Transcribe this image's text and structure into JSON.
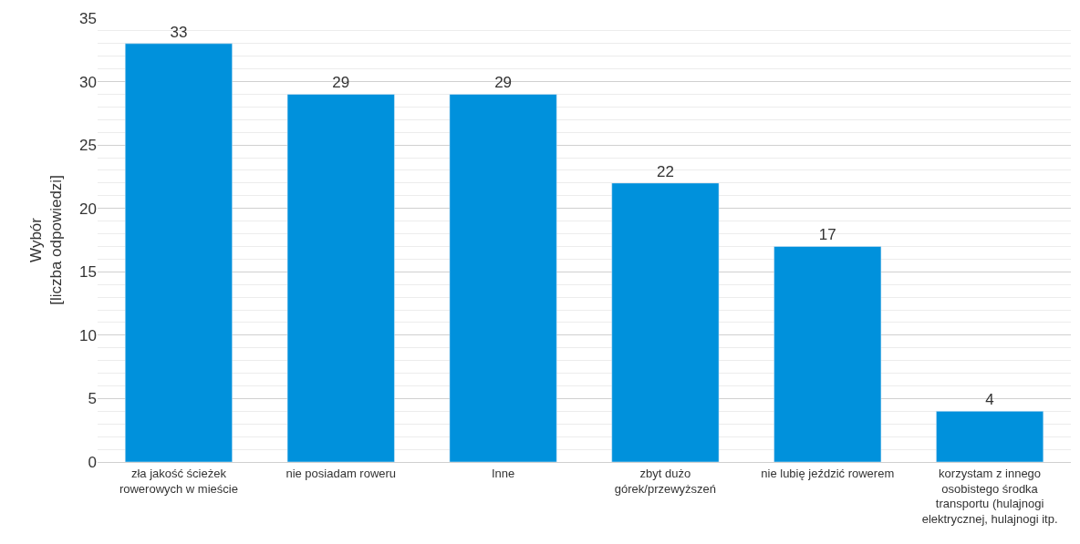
{
  "chart_data": {
    "type": "bar",
    "ylabel": "Wybór\n[liczba odpowiedzi]",
    "categories": [
      "zła jakość ścieżek\nrowerowych w mieście",
      "nie posiadam roweru",
      "Inne",
      "zbyt dużo\ngórek/przewyższeń",
      "nie lubię jeździć rowerem",
      "korzystam z innego\nosobistego środka\ntransportu (hulajnogi\nelektrycznej, hulajnogi itp."
    ],
    "values": [
      33,
      29,
      29,
      22,
      17,
      4
    ],
    "color": "#0091dc",
    "ylim": [
      0,
      35
    ],
    "yticks": [
      0,
      5,
      10,
      15,
      20,
      25,
      30,
      35
    ],
    "grid": "y",
    "data_labels": true
  }
}
